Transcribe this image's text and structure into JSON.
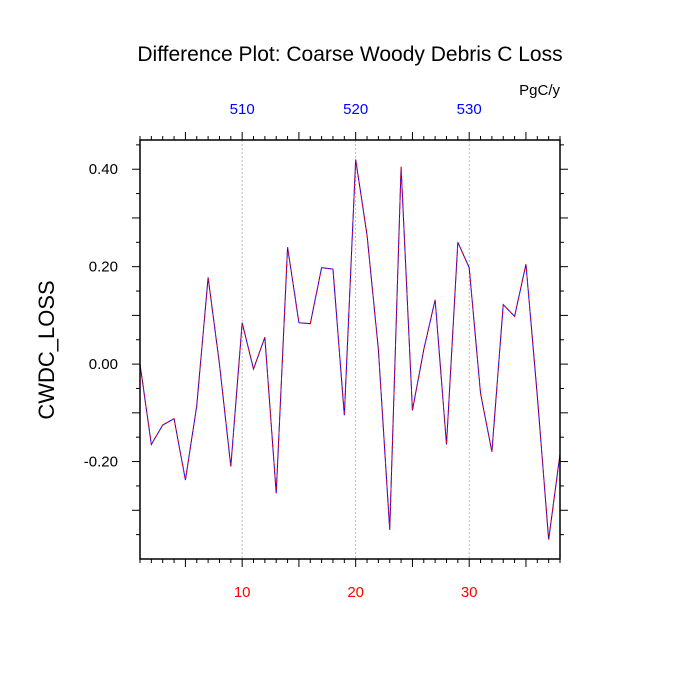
{
  "chart_data": {
    "type": "line",
    "title": "Difference Plot: Coarse Woody Debris C Loss",
    "units": "PgC/y",
    "ylabel": "CWDC_LOSS",
    "xlim": [
      1,
      38
    ],
    "ylim": [
      -0.4,
      0.46
    ],
    "y_tick_values": [
      -0.2,
      0.0,
      0.2,
      0.4
    ],
    "y_tick_labels": [
      "-0.20",
      "0.00",
      "0.20",
      "0.40"
    ],
    "x_bottom_ticks": [
      10,
      20,
      30
    ],
    "x_bottom_tick_labels": [
      "10",
      "20",
      "30"
    ],
    "x_top_ticks": [
      10,
      20,
      30
    ],
    "x_top_tick_labels": [
      "510",
      "520",
      "530"
    ],
    "grid_x": true,
    "colors": {
      "line_a": "#0000ff",
      "line_b": "#ff0000",
      "bottom_axis": "#ff0000",
      "top_axis": "#0000ff",
      "grid": "#aaaaaa"
    },
    "x": [
      1,
      2,
      3,
      4,
      5,
      6,
      7,
      8,
      9,
      10,
      11,
      12,
      13,
      14,
      15,
      16,
      17,
      18,
      19,
      20,
      21,
      22,
      23,
      24,
      25,
      26,
      27,
      28,
      29,
      30,
      31,
      32,
      33,
      34,
      35,
      36,
      37,
      38
    ],
    "series": [
      {
        "values": [
          0.0,
          -0.165,
          -0.125,
          -0.112,
          -0.238,
          -0.085,
          0.178,
          0.0,
          -0.21,
          0.085,
          -0.01,
          0.055,
          -0.265,
          0.24,
          0.085,
          0.083,
          0.198,
          0.195,
          -0.105,
          0.42,
          0.265,
          0.03,
          -0.34,
          0.405,
          -0.095,
          0.03,
          0.132,
          -0.165,
          0.25,
          0.198,
          -0.06,
          -0.18,
          0.122,
          0.098,
          0.205,
          -0.065,
          -0.36,
          -0.185
        ]
      }
    ]
  }
}
